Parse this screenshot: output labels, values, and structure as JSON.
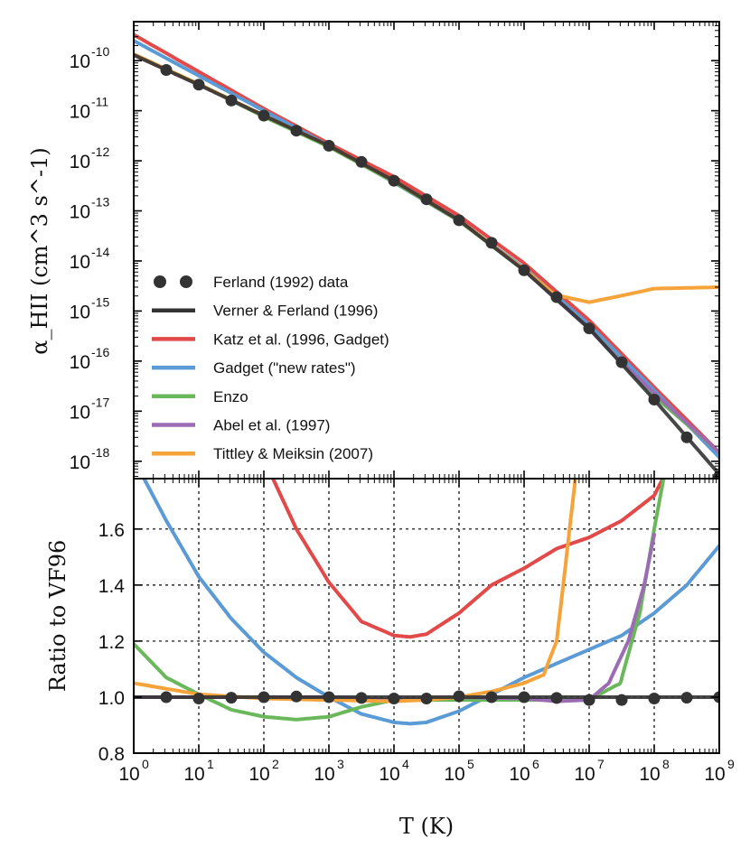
{
  "chart_data": [
    {
      "type": "line",
      "panel": "top",
      "scale": "log-log",
      "ylabel": "α_HII (cm^3 s^-1)",
      "xlim": [
        1,
        1000000000.0
      ],
      "ylim": [
        4.5e-19,
        6e-10
      ],
      "x_ticks": [
        {
          "base": "10",
          "exp": "0"
        },
        {
          "base": "10",
          "exp": "1"
        },
        {
          "base": "10",
          "exp": "2"
        },
        {
          "base": "10",
          "exp": "3"
        },
        {
          "base": "10",
          "exp": "4"
        },
        {
          "base": "10",
          "exp": "5"
        },
        {
          "base": "10",
          "exp": "6"
        },
        {
          "base": "10",
          "exp": "7"
        },
        {
          "base": "10",
          "exp": "8"
        },
        {
          "base": "10",
          "exp": "9"
        }
      ],
      "y_ticks": [
        {
          "base": "10",
          "exp": "-10"
        },
        {
          "base": "10",
          "exp": "-11"
        },
        {
          "base": "10",
          "exp": "-12"
        },
        {
          "base": "10",
          "exp": "-13"
        },
        {
          "base": "10",
          "exp": "-14"
        },
        {
          "base": "10",
          "exp": "-15"
        },
        {
          "base": "10",
          "exp": "-16"
        },
        {
          "base": "10",
          "exp": "-17"
        },
        {
          "base": "10",
          "exp": "-18"
        }
      ],
      "series": [
        {
          "name": "Ferland (1992) data",
          "style": "points",
          "color": "#333333",
          "x": [
            3.16,
            10,
            31.6,
            100,
            316,
            1000,
            3160,
            10000,
            31600,
            100000,
            316000,
            1000000,
            3160000,
            10000000,
            31600000,
            100000000,
            316000000,
            1000000000
          ],
          "y": [
            6.5e-11,
            3.3e-11,
            1.6e-11,
            8e-12,
            4e-12,
            2e-12,
            9.5e-13,
            4e-13,
            1.7e-13,
            6.5e-14,
            2.3e-14,
            6.5e-15,
            1.9e-15,
            4.5e-16,
            9.5e-17,
            1.7e-17,
            3e-18,
            5e-19
          ]
        },
        {
          "name": "Verner & Ferland (1996)",
          "color": "#333333",
          "x": [
            1,
            10,
            100,
            1000,
            10000,
            100000,
            1000000,
            10000000,
            100000000,
            1000000000
          ],
          "y": [
            1.3e-10,
            3.3e-11,
            8e-12,
            2e-12,
            4e-13,
            6.5e-14,
            6.5e-15,
            4.5e-16,
            1.7e-17,
            5.5e-19
          ]
        },
        {
          "name": "Katz et al. (1996, Gadget)",
          "color": "#e24a4a",
          "x": [
            1,
            10,
            100,
            1000,
            10000,
            100000,
            1000000,
            10000000,
            100000000,
            1000000000
          ],
          "y": [
            3.3e-10,
            6e-11,
            1.1e-11,
            2.2e-12,
            4.8e-13,
            8e-14,
            9e-15,
            6.5e-16,
            3e-17,
            1.5e-18
          ]
        },
        {
          "name": "Gadget (\"new rates\")",
          "color": "#5b9bd5",
          "x": [
            1,
            10,
            100,
            1000,
            10000,
            100000,
            1000000,
            10000000,
            100000000,
            1000000000
          ],
          "y": [
            2.5e-10,
            5e-11,
            1e-11,
            2e-12,
            3.7e-13,
            6.3e-14,
            7.2e-15,
            5.3e-16,
            2.6e-17,
            1.2e-18
          ]
        },
        {
          "name": "Enzo",
          "color": "#6ab85b",
          "x": [
            1,
            10,
            100,
            1000,
            10000,
            100000,
            1000000,
            10000000,
            100000000,
            1000000000
          ],
          "y": [
            1.3e-10,
            3.4e-11,
            7.6e-12,
            1.9e-12,
            3.8e-13,
            6.3e-14,
            6.5e-15,
            4.5e-16,
            2e-17,
            1.5e-18
          ]
        },
        {
          "name": "Abel et al. (1997)",
          "color": "#9b6bb3",
          "x": [
            1,
            10,
            100,
            1000,
            10000,
            100000,
            1000000,
            10000000,
            30000000,
            100000000,
            1000000000
          ],
          "y": [
            1.3e-10,
            3.3e-11,
            8e-12,
            2e-12,
            4e-13,
            6.5e-14,
            6.5e-15,
            4.4e-16,
            1e-16,
            2.3e-17,
            1.5e-18
          ]
        },
        {
          "name": "Tittley & Meiksin (2007)",
          "color": "#f5a33a",
          "x": [
            1,
            10,
            100,
            1000,
            10000,
            100000,
            1000000,
            3000000,
            10000000,
            30000000,
            100000000,
            1000000000
          ],
          "y": [
            1.35e-10,
            3.4e-11,
            8e-12,
            2e-12,
            4e-13,
            6.5e-14,
            6.8e-15,
            2.1e-15,
            1.5e-15,
            2e-15,
            2.8e-15,
            3e-15
          ]
        }
      ],
      "legend_position": "lower-left"
    },
    {
      "type": "line",
      "panel": "bottom",
      "scale": "log-x",
      "ylabel": "Ratio to VF96",
      "xlabel": "T (K)",
      "xlim": [
        1,
        1000000000.0
      ],
      "ylim": [
        0.8,
        1.78
      ],
      "grid": true,
      "x_ticks": [
        {
          "base": "10",
          "exp": "0"
        },
        {
          "base": "10",
          "exp": "1"
        },
        {
          "base": "10",
          "exp": "2"
        },
        {
          "base": "10",
          "exp": "3"
        },
        {
          "base": "10",
          "exp": "4"
        },
        {
          "base": "10",
          "exp": "5"
        },
        {
          "base": "10",
          "exp": "6"
        },
        {
          "base": "10",
          "exp": "7"
        },
        {
          "base": "10",
          "exp": "8"
        },
        {
          "base": "10",
          "exp": "9"
        }
      ],
      "y_ticks": [
        "0.8",
        "1.0",
        "1.2",
        "1.4",
        "1.6"
      ],
      "series": [
        {
          "name": "Ferland (1992) data",
          "style": "points",
          "color": "#333333",
          "x": [
            3.16,
            10,
            31.6,
            100,
            316,
            1000,
            3160,
            10000,
            31600,
            100000,
            316000,
            1000000,
            3160000,
            10000000,
            31600000,
            100000000,
            316000000,
            1000000000
          ],
          "y": [
            1.0,
            0.995,
            0.998,
            1.0,
            1.002,
            1.0,
            0.997,
            0.995,
            0.995,
            1.003,
            1.0,
            1.0,
            0.997,
            0.99,
            0.99,
            0.995,
            0.998,
            1.0
          ]
        },
        {
          "name": "Verner & Ferland (1996)",
          "color": "#333333",
          "x": [
            1,
            1000000000
          ],
          "y": [
            1.0,
            1.0
          ]
        },
        {
          "name": "Katz et al. (1996, Gadget)",
          "color": "#e24a4a",
          "x": [
            100,
            316,
            1000,
            3160,
            10000,
            17800,
            31600,
            100000,
            316000,
            1000000,
            3160000,
            10000000,
            31600000,
            100000000,
            150000000
          ],
          "y": [
            1.85,
            1.6,
            1.41,
            1.27,
            1.22,
            1.215,
            1.225,
            1.3,
            1.4,
            1.46,
            1.53,
            1.57,
            1.63,
            1.72,
            1.8
          ]
        },
        {
          "name": "Gadget (\"new rates\")",
          "color": "#5b9bd5",
          "x": [
            1,
            3.16,
            10,
            31.6,
            100,
            316,
            1000,
            3160,
            10000,
            17800,
            31600,
            100000,
            316000,
            1000000,
            3160000,
            10000000,
            31600000,
            100000000,
            316000000,
            1000000000
          ],
          "y": [
            1.85,
            1.63,
            1.43,
            1.28,
            1.16,
            1.07,
            1.0,
            0.94,
            0.91,
            0.905,
            0.91,
            0.95,
            1.01,
            1.07,
            1.12,
            1.17,
            1.22,
            1.3,
            1.4,
            1.54
          ]
        },
        {
          "name": "Enzo",
          "color": "#6ab85b",
          "x": [
            1,
            3.16,
            10,
            31.6,
            100,
            316,
            1000,
            3160,
            10000,
            31600,
            100000,
            1000000,
            10000000,
            30000000,
            60000000,
            100000000,
            150000000
          ],
          "y": [
            1.19,
            1.07,
            1.01,
            0.955,
            0.93,
            0.92,
            0.93,
            0.965,
            0.99,
            0.99,
            0.99,
            0.99,
            0.99,
            1.05,
            1.3,
            1.6,
            1.82
          ]
        },
        {
          "name": "Abel et al. (1997)",
          "color": "#9b6bb3",
          "x": [
            1,
            10,
            100,
            1000,
            10000,
            100000,
            1000000,
            3160000,
            10000000,
            20000000,
            40000000,
            70000000,
            100000000
          ],
          "y": [
            1.0,
            1.0,
            1.0,
            1.0,
            0.99,
            1.0,
            0.995,
            0.985,
            0.99,
            1.05,
            1.2,
            1.4,
            1.58
          ]
        },
        {
          "name": "Tittley & Meiksin (2007)",
          "color": "#f5a33a",
          "x": [
            1,
            10,
            100,
            1000,
            10000,
            31600,
            100000,
            316000,
            1000000,
            2000000,
            3160000,
            4000000,
            5000000,
            6300000,
            7000000
          ],
          "y": [
            1.05,
            1.01,
            0.995,
            0.99,
            0.985,
            0.99,
            1.0,
            1.02,
            1.05,
            1.08,
            1.2,
            1.4,
            1.6,
            1.8,
            1.85
          ]
        }
      ]
    }
  ]
}
